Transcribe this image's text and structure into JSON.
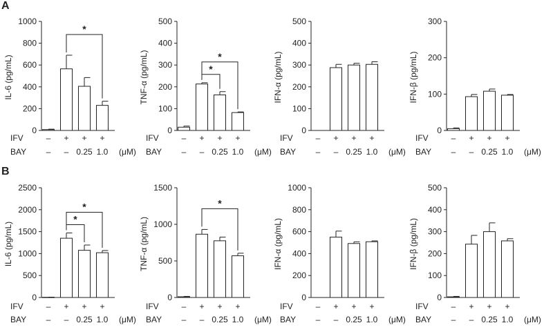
{
  "panel_labels": [
    "A",
    "B"
  ],
  "treatment_labels": {
    "row1": "IFV",
    "row2": "BAY",
    "unit": "(μM)"
  },
  "treatment_values": {
    "ifv": [
      "–",
      "+",
      "+",
      "+"
    ],
    "bay": [
      "–",
      "–",
      "0.25",
      "1.0"
    ]
  },
  "chart_data": [
    {
      "type": "bar",
      "row": 0,
      "ylabel": "IL-6 (pg/mL)",
      "ylim": [
        0,
        1000
      ],
      "ticks": [
        "0",
        "200",
        "400",
        "600",
        "800",
        "1000"
      ],
      "values": [
        8,
        565,
        405,
        230
      ],
      "errors": [
        4,
        125,
        80,
        38
      ],
      "sig": [
        {
          "from": 1,
          "to": 3,
          "label": "*"
        }
      ]
    },
    {
      "type": "bar",
      "row": 0,
      "ylabel": "TNF-α (pg/mL)",
      "ylim": [
        0,
        500
      ],
      "ticks": [
        "0",
        "100",
        "200",
        "300",
        "400",
        "500"
      ],
      "values": [
        15,
        213,
        163,
        82
      ],
      "errors": [
        5,
        6,
        15,
        3
      ],
      "sig": [
        {
          "from": 1,
          "to": 2,
          "label": "*"
        },
        {
          "from": 1,
          "to": 3,
          "label": "*"
        }
      ]
    },
    {
      "type": "bar",
      "row": 0,
      "ylabel": "IFN-α (pg/mL)",
      "ylim": [
        0,
        500
      ],
      "ticks": [
        "0",
        "100",
        "200",
        "300",
        "400",
        "500"
      ],
      "values": [
        0,
        288,
        300,
        303
      ],
      "errors": [
        0,
        15,
        8,
        12
      ],
      "sig": []
    },
    {
      "type": "bar",
      "row": 0,
      "ylabel": "IFN-β (pg/mL)",
      "ylim": [
        0,
        300
      ],
      "ticks": [
        "0",
        "100",
        "200",
        "300"
      ],
      "values": [
        5,
        93,
        108,
        97
      ],
      "errors": [
        2,
        6,
        6,
        2
      ],
      "sig": []
    },
    {
      "type": "bar",
      "row": 1,
      "ylabel": "IL-6 (pg/mL)",
      "ylim": [
        0,
        2500
      ],
      "ticks": [
        "0",
        "500",
        "1000",
        "1500",
        "2000",
        "2500"
      ],
      "values": [
        5,
        1350,
        1075,
        1020
      ],
      "errors": [
        3,
        120,
        120,
        50
      ],
      "sig": [
        {
          "from": 1,
          "to": 2,
          "label": "*"
        },
        {
          "from": 1,
          "to": 3,
          "label": "*"
        }
      ]
    },
    {
      "type": "bar",
      "row": 1,
      "ylabel": "TNF-α (pg/mL)",
      "ylim": [
        0,
        1500
      ],
      "ticks": [
        "0",
        "500",
        "1000",
        "1500"
      ],
      "values": [
        10,
        865,
        775,
        570
      ],
      "errors": [
        5,
        65,
        50,
        35
      ],
      "sig": [
        {
          "from": 1,
          "to": 3,
          "label": "*"
        }
      ]
    },
    {
      "type": "bar",
      "row": 1,
      "ylabel": "IFN-α (pg/mL)",
      "ylim": [
        0,
        1000
      ],
      "ticks": [
        "0",
        "200",
        "400",
        "600",
        "800",
        "1000"
      ],
      "values": [
        0,
        550,
        492,
        508
      ],
      "errors": [
        0,
        55,
        15,
        8
      ],
      "sig": []
    },
    {
      "type": "bar",
      "row": 1,
      "ylabel": "IFN-β (pg/mL)",
      "ylim": [
        0,
        500
      ],
      "ticks": [
        "0",
        "100",
        "200",
        "300",
        "400",
        "500"
      ],
      "values": [
        3,
        243,
        300,
        258
      ],
      "errors": [
        2,
        40,
        40,
        10
      ],
      "sig": []
    }
  ]
}
